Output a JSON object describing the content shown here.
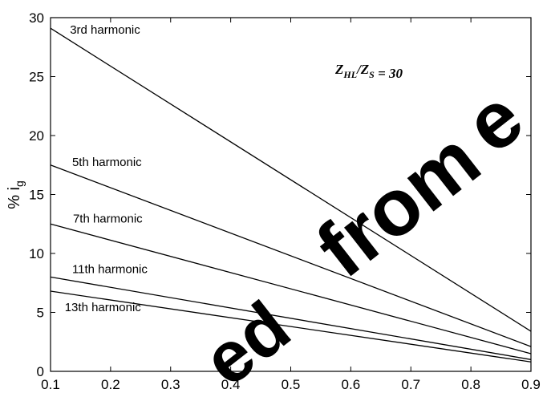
{
  "chart_data": {
    "type": "line",
    "title": "",
    "xlabel": "",
    "ylabel": "% i",
    "ylabel_subscript": "g",
    "xlim": [
      0.1,
      0.9
    ],
    "ylim": [
      0,
      30
    ],
    "x_ticks": [
      "0.1",
      "0.2",
      "0.3",
      "0.4",
      "0.5",
      "0.6",
      "0.7",
      "0.8",
      "0.9"
    ],
    "y_ticks": [
      "0",
      "5",
      "10",
      "15",
      "20",
      "25",
      "30"
    ],
    "grid": false,
    "annotation": {
      "text_parts": [
        {
          "t": "Z",
          "sub": "HL"
        },
        {
          "t": "/Z",
          "sub": "S"
        },
        {
          "t": " = 30",
          "sub": ""
        }
      ]
    },
    "series": [
      {
        "name": "3rd harmonic",
        "x": [
          0.1,
          0.9
        ],
        "y": [
          29.1,
          3.4
        ]
      },
      {
        "name": "5th harmonic",
        "x": [
          0.1,
          0.9
        ],
        "y": [
          17.5,
          2.1
        ]
      },
      {
        "name": "7th harmonic",
        "x": [
          0.1,
          0.9
        ],
        "y": [
          12.5,
          1.5
        ]
      },
      {
        "name": "11th harmonic",
        "x": [
          0.1,
          0.9
        ],
        "y": [
          8.0,
          1.0
        ]
      },
      {
        "name": "13th harmonic",
        "x": [
          0.1,
          0.9
        ],
        "y": [
          6.8,
          0.8
        ]
      }
    ]
  },
  "watermark": {
    "fragments": [
      "ed",
      "from",
      "e"
    ]
  }
}
